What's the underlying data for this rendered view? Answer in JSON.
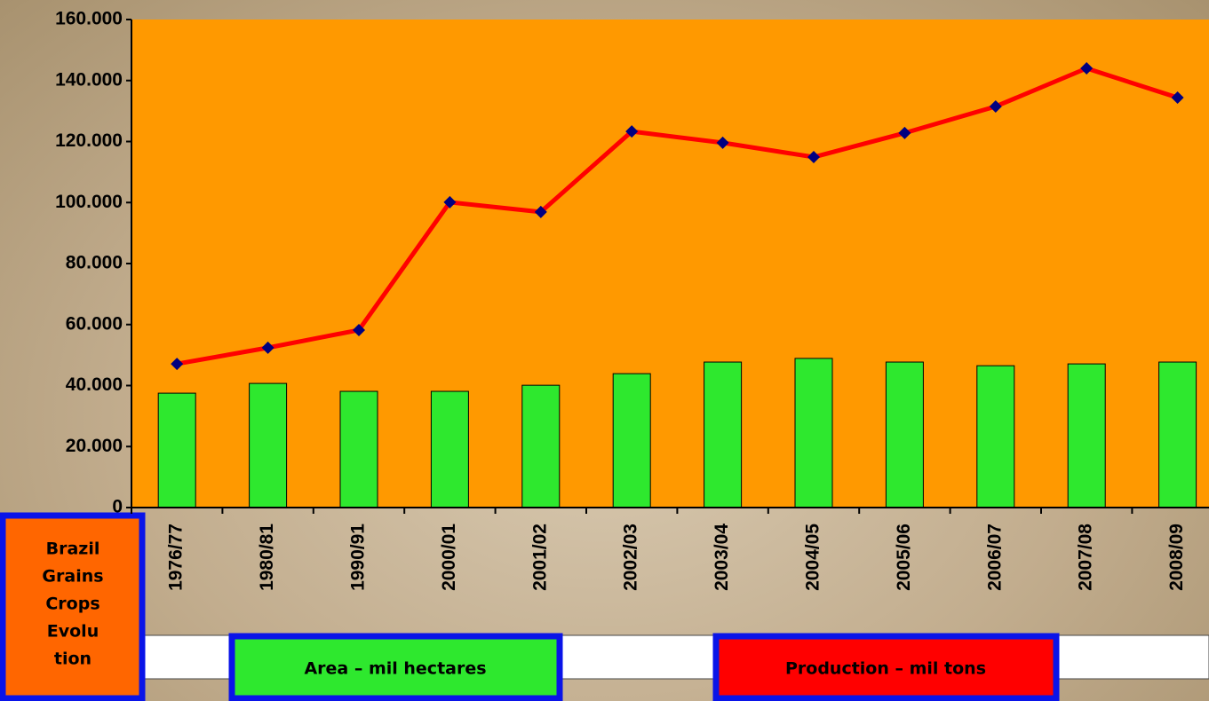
{
  "chart_data": {
    "type": "bar",
    "title_lines": [
      "Brazil",
      "Grains",
      "Crops",
      "Evolu",
      "tion"
    ],
    "categories": [
      "1976/77",
      "1980/81",
      "1990/91",
      "2000/01",
      "2001/02",
      "2002/03",
      "2003/04",
      "2004/05",
      "2005/06",
      "2006/07",
      "2007/08",
      "2008/09"
    ],
    "series": [
      {
        "name": "Area – mil hectares",
        "type": "bar",
        "color": "#2ee82e",
        "values": [
          37500,
          40700,
          38100,
          38100,
          40100,
          43900,
          47700,
          48900,
          47700,
          46500,
          47100,
          47700
        ]
      },
      {
        "name": "Production – mil tons",
        "type": "line",
        "color": "#ff0000",
        "marker_color": "#000080",
        "values": [
          47100,
          52400,
          58200,
          100100,
          96900,
          123300,
          119600,
          114900,
          122800,
          131500,
          144000,
          134400
        ]
      }
    ],
    "plot_color": "#ff9900",
    "ylim": [
      0,
      160000
    ],
    "yticks": [
      0,
      {
        "value": 20000,
        "label": "20.000"
      },
      {
        "value": 40000,
        "label": "40.000"
      },
      {
        "value": 60000,
        "label": "60.000"
      },
      {
        "value": 80000,
        "label": "80.000"
      },
      {
        "value": 100000,
        "label": "100.000"
      },
      {
        "value": 120000,
        "label": "120.000"
      },
      {
        "value": 140000,
        "label": "140.000"
      },
      {
        "value": 160000,
        "label": "160.000"
      }
    ]
  }
}
